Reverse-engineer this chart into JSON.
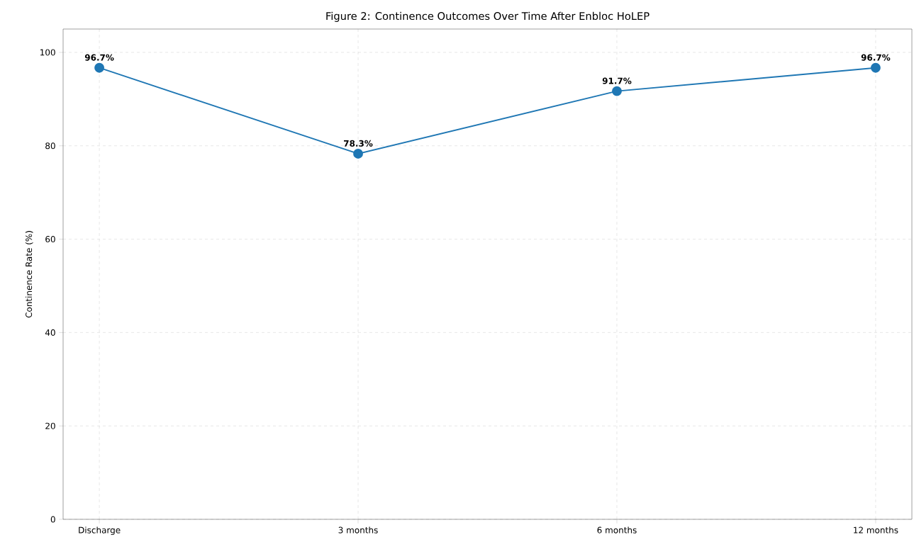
{
  "chart_data": {
    "type": "line",
    "title": "Figure 2: Continence Outcomes Over Time After Enbloc HoLEP",
    "ylabel": "Continence Rate (%)",
    "categories": [
      "Discharge",
      "3 months",
      "6 months",
      "12 months"
    ],
    "series": [
      {
        "color": "#1f77b4",
        "values": [
          96.7,
          78.3,
          91.7,
          96.7
        ],
        "value_labels": [
          "96.7%",
          "78.3%",
          "91.7%",
          "96.7%"
        ]
      }
    ],
    "ylim": [
      0,
      105
    ],
    "yticks": [
      0,
      20,
      40,
      60,
      80,
      100
    ],
    "grid": true,
    "marker": "circle",
    "line_style": "solid"
  }
}
